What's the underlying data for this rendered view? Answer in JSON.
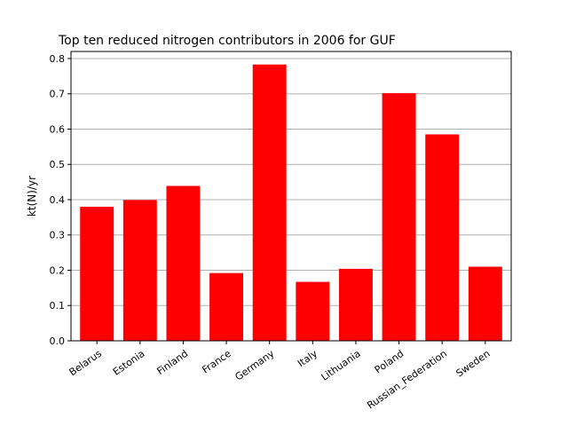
{
  "chart_data": {
    "type": "bar",
    "title": "Top ten reduced nitrogen contributors in 2006 for  GUF",
    "xlabel": "",
    "ylabel": "kt(N)/yr",
    "categories": [
      "Belarus",
      "Estonia",
      "Finland",
      "France",
      "Germany",
      "Italy",
      "Lithuania",
      "Poland",
      "Russian_Federation",
      "Sweden"
    ],
    "values": [
      0.38,
      0.399,
      0.439,
      0.192,
      0.783,
      0.167,
      0.204,
      0.702,
      0.585,
      0.21
    ],
    "ylim": [
      0,
      0.82
    ],
    "yticks": [
      "0.0",
      "0.1",
      "0.2",
      "0.3",
      "0.4",
      "0.5",
      "0.6",
      "0.7",
      "0.8"
    ],
    "grid": "y-major",
    "bar_color": "#ff0000",
    "grid_color": "#b0b0b0"
  }
}
